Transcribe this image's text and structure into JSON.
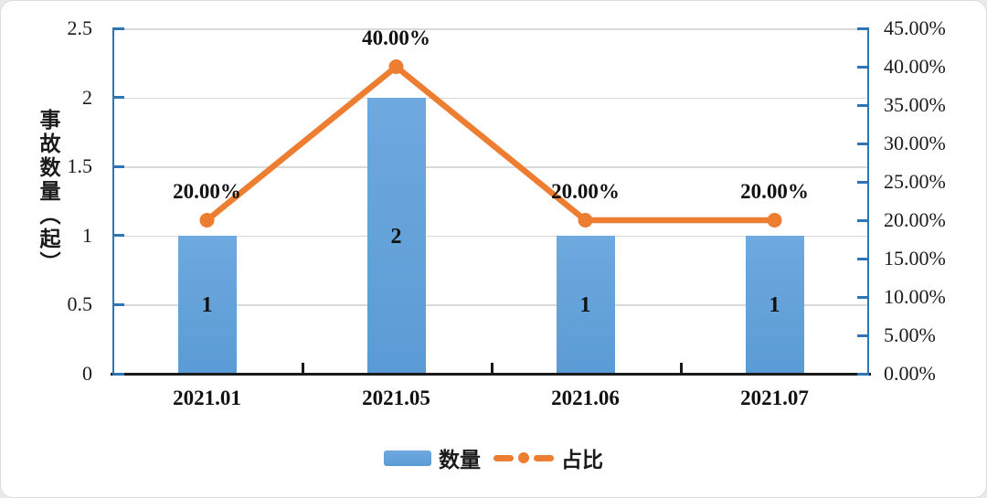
{
  "chart": {
    "left_axis": {
      "title": "事故数量（起）",
      "min": 0,
      "max": 2.5,
      "step": 0.5,
      "tick_labels": [
        "0",
        "0.5",
        "1",
        "1.5",
        "2",
        "2.5"
      ]
    },
    "right_axis": {
      "min": 0,
      "max": 45,
      "step": 5,
      "tick_labels": [
        "0.00%",
        "5.00%",
        "10.00%",
        "15.00%",
        "20.00%",
        "25.00%",
        "30.00%",
        "35.00%",
        "40.00%",
        "45.00%"
      ]
    },
    "legend": {
      "bar_label": "数量",
      "line_label": "占比"
    },
    "colors": {
      "bar": "#5B9BD5",
      "bar_top": "#6EA9DF",
      "line": "#ED7D31",
      "axis": "#2E75B6",
      "x_axis": "#1a1a1a",
      "gridline": "#D9D9D9"
    }
  },
  "chart_data": {
    "type": "bar",
    "subtype": "bar+line combo, dual axis",
    "categories": [
      "2021.01",
      "2021.05",
      "2021.06",
      "2021.07"
    ],
    "series": [
      {
        "name": "数量",
        "type": "bar",
        "axis": "left",
        "values": [
          1,
          2,
          1,
          1
        ],
        "data_labels": [
          "1",
          "2",
          "1",
          "1"
        ]
      },
      {
        "name": "占比",
        "type": "line",
        "axis": "right",
        "values_percent": [
          20,
          40,
          20,
          20
        ],
        "data_labels": [
          "20.00%",
          "40.00%",
          "20.00%",
          "20.00%"
        ]
      }
    ],
    "title": "",
    "xlabel": "",
    "ylabel_left": "事故数量（起）",
    "ylabel_right": "",
    "left_ylim": [
      0,
      2.5
    ],
    "right_ylim_percent": [
      0,
      45
    ],
    "grid": true,
    "legend_position": "bottom"
  }
}
